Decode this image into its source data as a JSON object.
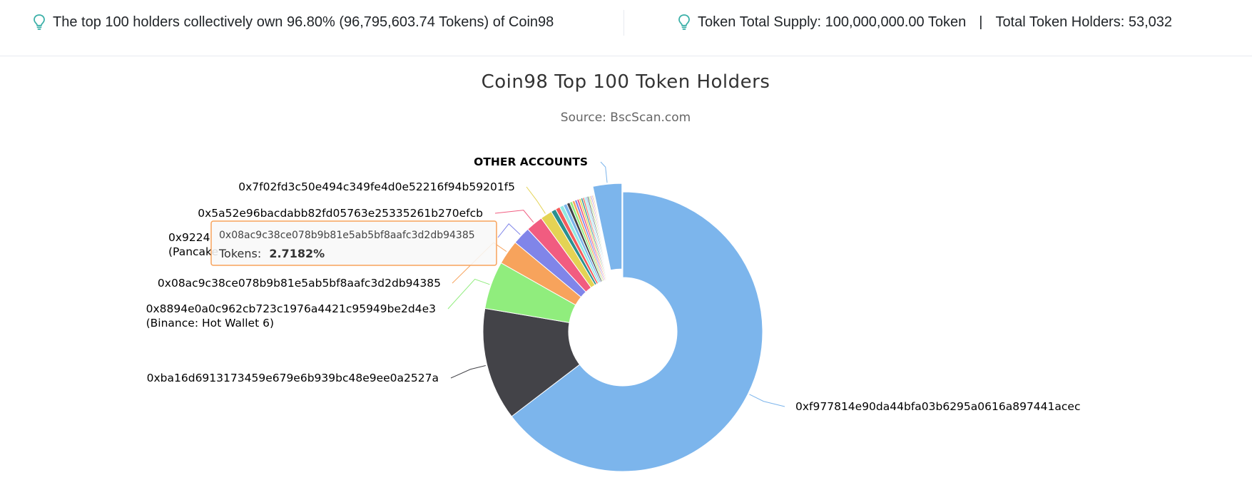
{
  "header": {
    "holders_summary": "The top 100 holders collectively own 96.80% (96,795,603.74 Tokens) of Coin98",
    "supply_text": "Token Total Supply: 100,000,000.00 Token",
    "separator": "|",
    "holders_count_text": "Total Token Holders: 53,032",
    "bulb_icon": "lightbulb-icon"
  },
  "chart_data": {
    "type": "pie",
    "donut": true,
    "title": "Coin98 Top 100 Token Holders",
    "subtitle": "Source: BscScan.com",
    "slices": [
      {
        "label": "0xf977814e90da44bfa03b6295a0616a897441acec",
        "sublabel": "",
        "value": 62.0,
        "color": "#7cb5ec",
        "sliced": false,
        "show_label": true
      },
      {
        "label": "0xba16d6913173459e679e6b939bc48e9ee0a2527a",
        "sublabel": "",
        "value": 12.5,
        "color": "#434348",
        "sliced": false,
        "show_label": true
      },
      {
        "label": "0x8894e0a0c962cb723c1976a4421c95949be2d4e3",
        "sublabel": "(Binance: Hot Wallet 6)",
        "value": 5.3,
        "color": "#90ed7d",
        "sliced": false,
        "show_label": true
      },
      {
        "label": "0x08ac9c38ce078b9b81e5ab5bf8aafc3d2db94385",
        "sublabel": "",
        "value": 2.7182,
        "color": "#f7a35c",
        "sliced": false,
        "show_label": true
      },
      {
        "label": "0x9224",
        "sublabel": "(Pancake",
        "value": 2.0,
        "color": "#8085e9",
        "sliced": false,
        "show_label": true
      },
      {
        "label": "0x5a52e96bacdabb82fd05763e25335261b270efcb",
        "sublabel": "",
        "value": 1.9,
        "color": "#f15c80",
        "sliced": false,
        "show_label": true
      },
      {
        "label": "0x7f02fd3c50e494c349fe4d0e52216f94b59201f5",
        "sublabel": "",
        "value": 1.3,
        "color": "#e4d354",
        "sliced": false,
        "show_label": true
      },
      {
        "label": "",
        "sublabel": "",
        "value": 0.55,
        "color": "#2b908f",
        "sliced": false,
        "show_label": false
      },
      {
        "label": "",
        "sublabel": "",
        "value": 0.5,
        "color": "#f45b5b",
        "sliced": false,
        "show_label": false
      },
      {
        "label": "",
        "sublabel": "",
        "value": 0.45,
        "color": "#91e8e1",
        "sliced": false,
        "show_label": false
      },
      {
        "label": "",
        "sublabel": "",
        "value": 0.4,
        "color": "#7cb5ec",
        "sliced": false,
        "show_label": false
      },
      {
        "label": "",
        "sublabel": "",
        "value": 0.35,
        "color": "#434348",
        "sliced": false,
        "show_label": false
      },
      {
        "label": "",
        "sublabel": "",
        "value": 0.3,
        "color": "#90ed7d",
        "sliced": false,
        "show_label": false
      },
      {
        "label": "",
        "sublabel": "",
        "value": 0.28,
        "color": "#f7a35c",
        "sliced": false,
        "show_label": false
      },
      {
        "label": "",
        "sublabel": "",
        "value": 0.26,
        "color": "#8085e9",
        "sliced": false,
        "show_label": false
      },
      {
        "label": "",
        "sublabel": "",
        "value": 0.24,
        "color": "#f15c80",
        "sliced": false,
        "show_label": false
      },
      {
        "label": "",
        "sublabel": "",
        "value": 0.22,
        "color": "#e4d354",
        "sliced": false,
        "show_label": false
      },
      {
        "label": "",
        "sublabel": "",
        "value": 0.2,
        "color": "#2b908f",
        "sliced": false,
        "show_label": false
      },
      {
        "label": "",
        "sublabel": "",
        "value": 0.18,
        "color": "#f45b5b",
        "sliced": false,
        "show_label": false
      },
      {
        "label": "",
        "sublabel": "",
        "value": 0.17,
        "color": "#91e8e1",
        "sliced": false,
        "show_label": false
      },
      {
        "label": "",
        "sublabel": "",
        "value": 0.16,
        "color": "#7cb5ec",
        "sliced": false,
        "show_label": false
      },
      {
        "label": "",
        "sublabel": "",
        "value": 0.15,
        "color": "#434348",
        "sliced": false,
        "show_label": false
      },
      {
        "label": "",
        "sublabel": "",
        "value": 0.14,
        "color": "#90ed7d",
        "sliced": false,
        "show_label": false
      },
      {
        "label": "",
        "sublabel": "",
        "value": 0.13,
        "color": "#f7a35c",
        "sliced": false,
        "show_label": false
      },
      {
        "label": "",
        "sublabel": "",
        "value": 0.12,
        "color": "#8085e9",
        "sliced": false,
        "show_label": false
      },
      {
        "label": "",
        "sublabel": "",
        "value": 0.11,
        "color": "#f15c80",
        "sliced": false,
        "show_label": false
      },
      {
        "label": "",
        "sublabel": "",
        "value": 0.1,
        "color": "#e4d354",
        "sliced": false,
        "show_label": false
      },
      {
        "label": "OTHER ACCOUNTS",
        "sublabel": "",
        "value": 3.2,
        "color": "#7cb5ec",
        "sliced": true,
        "show_label": true
      }
    ],
    "tooltip": {
      "address": "0x08ac9c38ce078b9b81e5ab5bf8aafc3d2db94385",
      "label": "Tokens:",
      "value": "2.7182%"
    }
  }
}
